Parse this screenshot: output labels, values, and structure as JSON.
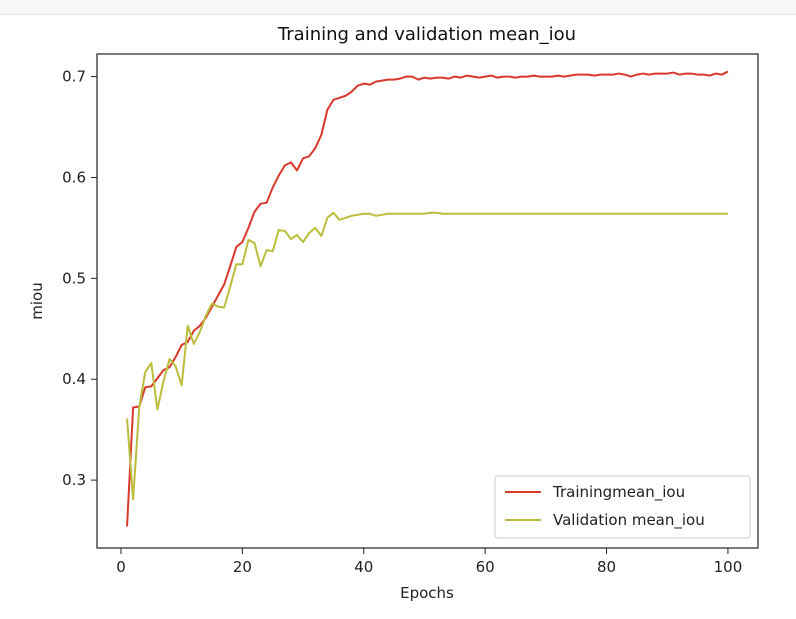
{
  "chart_data": {
    "type": "line",
    "title": "Training and validation mean_iou",
    "xlabel": "Epochs",
    "ylabel": "miou",
    "xlim": [
      -3.95,
      104.95
    ],
    "ylim": [
      0.2327,
      0.7224
    ],
    "xticks": [
      0,
      20,
      40,
      60,
      80,
      100
    ],
    "yticks": [
      0.3,
      0.4,
      0.5,
      0.6,
      0.7
    ],
    "xtick_labels": [
      "0",
      "20",
      "40",
      "60",
      "80",
      "100"
    ],
    "ytick_labels": [
      "0.3",
      "0.4",
      "0.5",
      "0.6",
      "0.7"
    ],
    "grid": false,
    "legend_position": "lower-right",
    "x": [
      1,
      2,
      3,
      4,
      5,
      6,
      7,
      8,
      9,
      10,
      11,
      12,
      13,
      14,
      15,
      16,
      17,
      18,
      19,
      20,
      21,
      22,
      23,
      24,
      25,
      26,
      27,
      28,
      29,
      30,
      31,
      32,
      33,
      34,
      35,
      36,
      37,
      38,
      39,
      40,
      41,
      42,
      43,
      44,
      45,
      46,
      47,
      48,
      49,
      50,
      51,
      52,
      53,
      54,
      55,
      56,
      57,
      58,
      59,
      60,
      61,
      62,
      63,
      64,
      65,
      66,
      67,
      68,
      69,
      70,
      71,
      72,
      73,
      74,
      75,
      76,
      77,
      78,
      79,
      80,
      81,
      82,
      83,
      84,
      85,
      86,
      87,
      88,
      89,
      90,
      91,
      92,
      93,
      94,
      95,
      96,
      97,
      98,
      99,
      100
    ],
    "series": [
      {
        "name": "Trainingmean_iou",
        "color": "#d9392c",
        "values": [
          0.254,
          0.372,
          0.373,
          0.392,
          0.393,
          0.401,
          0.409,
          0.412,
          0.422,
          0.434,
          0.437,
          0.448,
          0.453,
          0.461,
          0.472,
          0.483,
          0.494,
          0.512,
          0.531,
          0.536,
          0.55,
          0.566,
          0.574,
          0.575,
          0.59,
          0.602,
          0.612,
          0.615,
          0.607,
          0.619,
          0.621,
          0.629,
          0.642,
          0.667,
          0.677,
          0.679,
          0.681,
          0.685,
          0.691,
          0.693,
          0.692,
          0.695,
          0.696,
          0.697,
          0.697,
          0.698,
          0.7,
          0.7,
          0.697,
          0.699,
          0.698,
          0.699,
          0.699,
          0.698,
          0.7,
          0.699,
          0.701,
          0.7,
          0.699,
          0.7,
          0.701,
          0.699,
          0.7,
          0.7,
          0.699,
          0.7,
          0.7,
          0.701,
          0.7,
          0.7,
          0.7,
          0.701,
          0.7,
          0.701,
          0.702,
          0.702,
          0.702,
          0.701,
          0.702,
          0.702,
          0.702,
          0.703,
          0.702,
          0.7,
          0.702,
          0.703,
          0.702,
          0.703,
          0.703,
          0.703,
          0.704,
          0.702,
          0.703,
          0.703,
          0.702,
          0.702,
          0.701,
          0.703,
          0.702,
          0.705
        ]
      },
      {
        "name": "Validation mean_iou",
        "color": "#bcbd3c",
        "values": [
          0.361,
          0.281,
          0.372,
          0.407,
          0.416,
          0.37,
          0.398,
          0.42,
          0.413,
          0.394,
          0.453,
          0.435,
          0.447,
          0.463,
          0.475,
          0.472,
          0.471,
          0.492,
          0.514,
          0.514,
          0.538,
          0.535,
          0.512,
          0.528,
          0.527,
          0.548,
          0.547,
          0.539,
          0.543,
          0.536,
          0.545,
          0.55,
          0.542,
          0.56,
          0.565,
          0.558,
          0.56,
          0.562,
          0.563,
          0.564,
          0.564,
          0.562,
          0.563,
          0.564,
          0.564,
          0.564,
          0.564,
          0.564,
          0.564,
          0.564,
          0.565,
          0.565,
          0.564,
          0.564,
          0.564,
          0.564,
          0.564,
          0.564,
          0.564,
          0.564,
          0.564,
          0.564,
          0.564,
          0.564,
          0.564,
          0.564,
          0.564,
          0.564,
          0.564,
          0.564,
          0.564,
          0.564,
          0.564,
          0.564,
          0.564,
          0.564,
          0.564,
          0.564,
          0.564,
          0.564,
          0.564,
          0.564,
          0.564,
          0.564,
          0.564,
          0.564,
          0.564,
          0.564,
          0.564,
          0.564,
          0.564,
          0.564,
          0.564,
          0.564,
          0.564,
          0.564,
          0.564,
          0.564,
          0.564,
          0.564
        ]
      }
    ]
  }
}
